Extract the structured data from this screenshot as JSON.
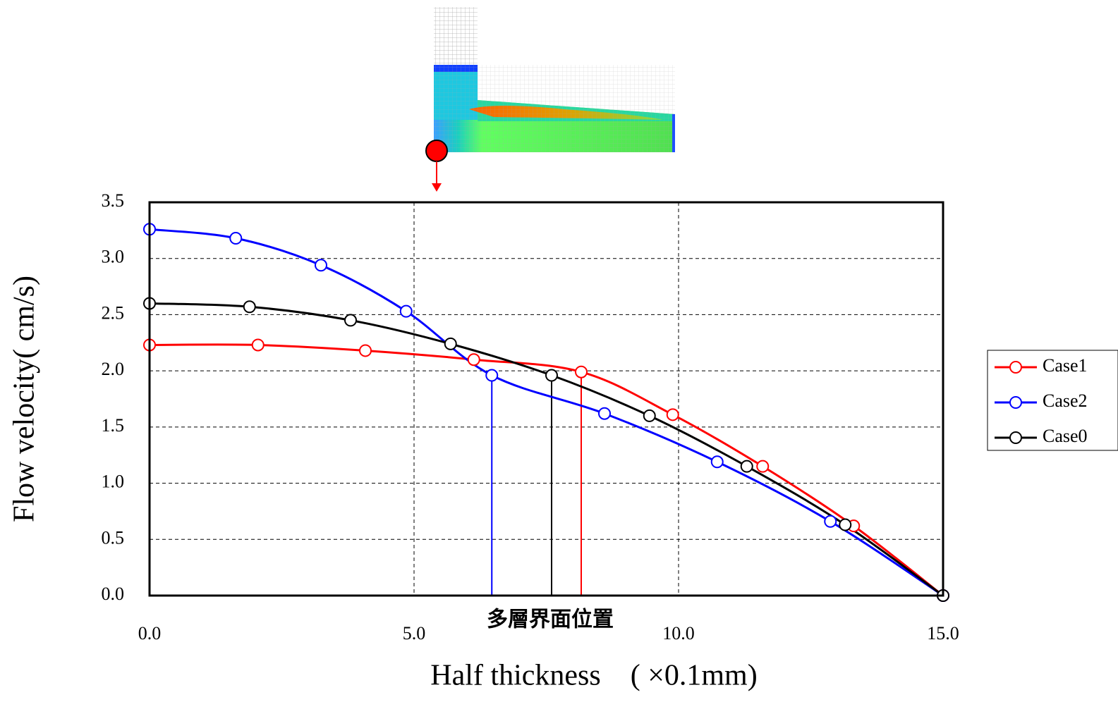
{
  "chart_data": {
    "type": "line",
    "annotation": "多層界面位置",
    "x_label": "Half thickness　( ×0.1mm)",
    "y_label": "Flow velocity( cm/s)",
    "xlim": [
      0,
      15
    ],
    "ylim": [
      0,
      3.5
    ],
    "xticks": [
      {
        "value": 0,
        "label": "0.0"
      },
      {
        "value": 5,
        "label": "5.0"
      },
      {
        "value": 10,
        "label": "10.0"
      },
      {
        "value": 15,
        "label": "15.0"
      }
    ],
    "yticks": [
      {
        "value": 0,
        "label": "0.0"
      },
      {
        "value": 0.5,
        "label": "0.5"
      },
      {
        "value": 1,
        "label": "1.0"
      },
      {
        "value": 1.5,
        "label": "1.5"
      },
      {
        "value": 2,
        "label": "2.0"
      },
      {
        "value": 2.5,
        "label": "2.5"
      },
      {
        "value": 3,
        "label": "3.0"
      },
      {
        "value": 3.5,
        "label": "3.5"
      }
    ],
    "grid": true,
    "legend": "right",
    "series": [
      {
        "name": "Case1",
        "color": "#ff0000",
        "x": [
          0,
          2.05,
          4.08,
          6.13,
          8.16,
          9.89,
          11.59,
          13.31,
          15
        ],
        "values": [
          2.23,
          2.23,
          2.18,
          2.1,
          1.99,
          1.61,
          1.15,
          0.62,
          0
        ]
      },
      {
        "name": "Case2",
        "color": "#0000ff",
        "x": [
          0,
          1.63,
          3.24,
          4.85,
          6.47,
          8.6,
          10.73,
          12.87,
          15
        ],
        "values": [
          3.26,
          3.18,
          2.94,
          2.53,
          1.96,
          1.62,
          1.19,
          0.66,
          0
        ]
      },
      {
        "name": "Case0",
        "color": "#000000",
        "x": [
          0,
          1.89,
          3.8,
          5.69,
          7.6,
          9.45,
          11.29,
          13.15,
          15
        ],
        "values": [
          2.6,
          2.57,
          2.45,
          2.24,
          1.96,
          1.6,
          1.15,
          0.63,
          0
        ]
      }
    ]
  }
}
